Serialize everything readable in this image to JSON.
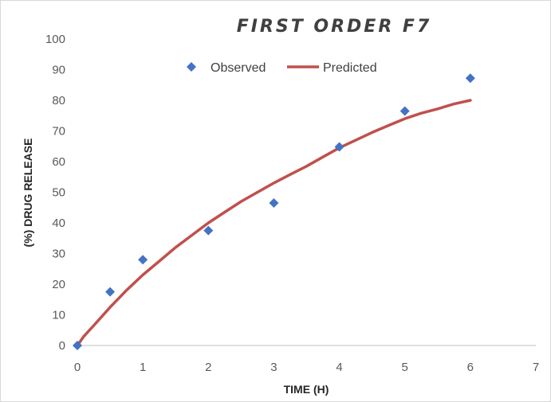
{
  "chart_data": {
    "type": "scatter",
    "title": "FIRST ORDER F7",
    "xlabel": "TIME (H)",
    "ylabel": "(%) DRUG RELEASE",
    "xlim": [
      0,
      7
    ],
    "ylim": [
      0,
      100
    ],
    "x_ticks": [
      0,
      1,
      2,
      3,
      4,
      5,
      6,
      7
    ],
    "y_ticks": [
      0,
      10,
      20,
      30,
      40,
      50,
      60,
      70,
      80,
      90,
      100
    ],
    "grid": false,
    "legend_position": "top-center",
    "series": [
      {
        "name": "Observed",
        "kind": "scatter",
        "marker": "diamond",
        "color": "#4472C4",
        "x": [
          0,
          0.5,
          1,
          2,
          3,
          4,
          5,
          6
        ],
        "y": [
          0,
          17.5,
          28,
          37.5,
          46.5,
          64.8,
          76.5,
          87.2
        ]
      },
      {
        "name": "Predicted",
        "kind": "line",
        "color": "#C0504D",
        "x": [
          0,
          0.1,
          0.25,
          0.5,
          0.75,
          1,
          1.25,
          1.5,
          1.75,
          2,
          2.25,
          2.5,
          2.75,
          3,
          3.25,
          3.5,
          3.75,
          4,
          4.25,
          4.5,
          4.75,
          5,
          5.25,
          5.5,
          5.75,
          6
        ],
        "y": [
          0,
          3,
          6.5,
          12.5,
          18,
          23,
          27.5,
          32,
          36,
          40,
          43.5,
          47,
          50,
          53,
          55.8,
          58.5,
          61.5,
          64.5,
          67,
          69.5,
          71.8,
          74,
          75.8,
          77.2,
          78.8,
          80
        ]
      }
    ]
  }
}
